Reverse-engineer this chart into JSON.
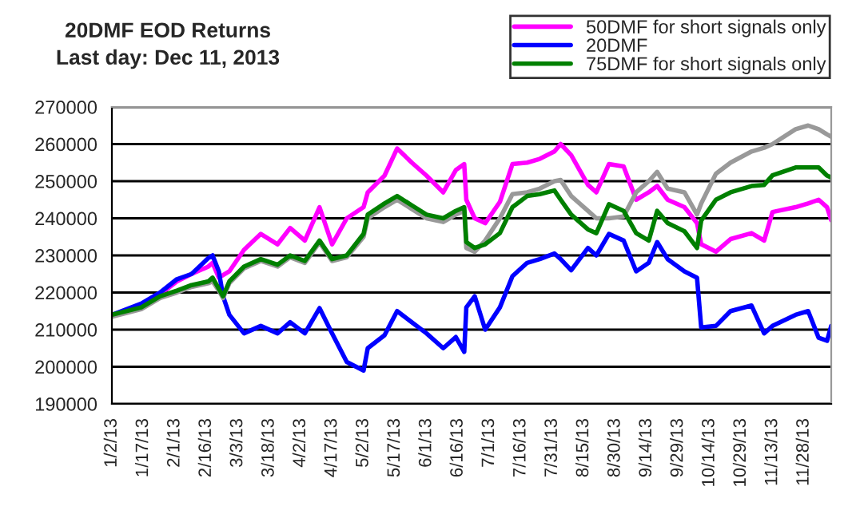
{
  "chart_data": {
    "type": "line",
    "title": "20DMF EOD Returns",
    "subtitle": "Last day: Dec 11, 2013",
    "x": [
      "2013-01-02",
      "2013-01-16",
      "2013-01-25",
      "2013-02-02",
      "2013-02-09",
      "2013-02-17",
      "2013-02-19",
      "2013-02-22",
      "2013-02-24",
      "2013-02-27",
      "2013-03-06",
      "2013-03-14",
      "2013-03-22",
      "2013-03-28",
      "2013-04-04",
      "2013-04-11",
      "2013-04-17",
      "2013-04-24",
      "2013-05-02",
      "2013-05-04",
      "2013-05-12",
      "2013-05-18",
      "2013-05-25",
      "2013-06-01",
      "2013-06-09",
      "2013-06-15",
      "2013-06-19",
      "2013-06-20",
      "2013-06-24",
      "2013-06-29",
      "2013-07-06",
      "2013-07-12",
      "2013-07-19",
      "2013-07-25",
      "2013-08-01",
      "2013-08-04",
      "2013-08-09",
      "2013-08-17",
      "2013-08-21",
      "2013-08-27",
      "2013-09-03",
      "2013-09-09",
      "2013-09-15",
      "2013-09-19",
      "2013-09-24",
      "2013-10-02",
      "2013-10-08",
      "2013-10-10",
      "2013-10-17",
      "2013-10-24",
      "2013-11-03",
      "2013-11-09",
      "2013-11-13",
      "2013-11-24",
      "2013-11-30",
      "2013-12-05",
      "2013-12-09",
      "2013-12-11"
    ],
    "series": [
      {
        "name": "50DMF for short signals only",
        "color": "#ff00ff",
        "values": [
          null,
          null,
          219500,
          223000,
          225000,
          227000,
          228000,
          224000,
          null,
          225700,
          231500,
          235800,
          233000,
          237400,
          234000,
          243000,
          233000,
          240000,
          243000,
          247000,
          251500,
          258800,
          255000,
          251500,
          247000,
          253000,
          254600,
          245000,
          240000,
          238700,
          244400,
          254600,
          255000,
          256000,
          258000,
          260000,
          257000,
          249000,
          247000,
          254600,
          254000,
          245000,
          247000,
          248700,
          245000,
          243000,
          238700,
          233000,
          231000,
          234400,
          236000,
          234000,
          241700,
          243000,
          244000,
          245000,
          243000,
          239500
        ]
      },
      {
        "name": "20DMF",
        "color": "#0000ff",
        "values": [
          214000,
          217000,
          220000,
          223600,
          225000,
          229300,
          230000,
          225700,
          219000,
          214000,
          209000,
          211000,
          209000,
          212000,
          209000,
          215800,
          209000,
          201300,
          199000,
          205000,
          208500,
          215000,
          212000,
          209000,
          205000,
          208000,
          204000,
          216000,
          219000,
          210000,
          216000,
          224400,
          228000,
          229000,
          230500,
          229000,
          226000,
          232000,
          230000,
          235800,
          234000,
          225700,
          228000,
          233600,
          229000,
          225700,
          224000,
          210600,
          211000,
          215000,
          216500,
          209000,
          211000,
          214000,
          215000,
          207800,
          207000,
          211000
        ]
      },
      {
        "color": "#999999",
        "values": [
          213500,
          215500,
          218500,
          220000,
          221500,
          222500,
          223000,
          220500,
          218500,
          222500,
          226500,
          228500,
          227000,
          229500,
          228000,
          233500,
          228500,
          229500,
          235000,
          240000,
          243000,
          245000,
          242500,
          240000,
          239000,
          241000,
          242000,
          232000,
          231000,
          234000,
          240000,
          246500,
          247000,
          248000,
          250000,
          250300,
          246000,
          242000,
          240000,
          240000,
          240500,
          247000,
          250000,
          252500,
          248000,
          247000,
          241000,
          244000,
          252000,
          255000,
          258000,
          259000,
          260000,
          264000,
          265000,
          264000,
          262600,
          262000
        ]
      },
      {
        "name": "75DMF for short signals only",
        "color": "#008000",
        "values": [
          214000,
          216000,
          219000,
          220500,
          222000,
          223000,
          224000,
          221000,
          219000,
          223000,
          227000,
          229000,
          227500,
          230000,
          228500,
          234000,
          229000,
          230000,
          235800,
          241000,
          244000,
          246000,
          243500,
          241000,
          240000,
          242000,
          243000,
          233600,
          232000,
          233000,
          236000,
          243000,
          246000,
          246500,
          247500,
          245000,
          241000,
          237000,
          236000,
          243800,
          242000,
          236000,
          234000,
          242000,
          238700,
          236500,
          232000,
          239400,
          245000,
          247000,
          248700,
          249000,
          251600,
          253700,
          253700,
          253700,
          251500,
          251000
        ]
      }
    ],
    "xlim": [
      "2013-01-02",
      "2013-12-11"
    ],
    "xticks": [
      {
        "value": "2013-01-02",
        "label": "1/2/13"
      },
      {
        "value": "2013-01-17",
        "label": "1/17/13"
      },
      {
        "value": "2013-02-01",
        "label": "2/1/13"
      },
      {
        "value": "2013-02-16",
        "label": "2/16/13"
      },
      {
        "value": "2013-03-03",
        "label": "3/3/13"
      },
      {
        "value": "2013-03-18",
        "label": "3/18/13"
      },
      {
        "value": "2013-04-02",
        "label": "4/2/13"
      },
      {
        "value": "2013-04-17",
        "label": "4/17/13"
      },
      {
        "value": "2013-05-02",
        "label": "5/2/13"
      },
      {
        "value": "2013-05-17",
        "label": "5/17/13"
      },
      {
        "value": "2013-06-01",
        "label": "6/1/13"
      },
      {
        "value": "2013-06-16",
        "label": "6/16/13"
      },
      {
        "value": "2013-07-01",
        "label": "7/1/13"
      },
      {
        "value": "2013-07-16",
        "label": "7/16/13"
      },
      {
        "value": "2013-07-31",
        "label": "7/31/13"
      },
      {
        "value": "2013-08-15",
        "label": "8/15/13"
      },
      {
        "value": "2013-08-30",
        "label": "8/30/13"
      },
      {
        "value": "2013-09-14",
        "label": "9/14/13"
      },
      {
        "value": "2013-09-29",
        "label": "9/29/13"
      },
      {
        "value": "2013-10-14",
        "label": "10/14/13"
      },
      {
        "value": "2013-10-29",
        "label": "10/29/13"
      },
      {
        "value": "2013-11-13",
        "label": "11/13/13"
      },
      {
        "value": "2013-11-28",
        "label": "11/28/13"
      }
    ],
    "ylim": [
      190000,
      270000
    ],
    "yticks": [
      190000,
      200000,
      210000,
      220000,
      230000,
      240000,
      250000,
      260000,
      270000
    ],
    "grid": "y",
    "legend": "top right",
    "marker": "none",
    "line_style": "solid"
  }
}
